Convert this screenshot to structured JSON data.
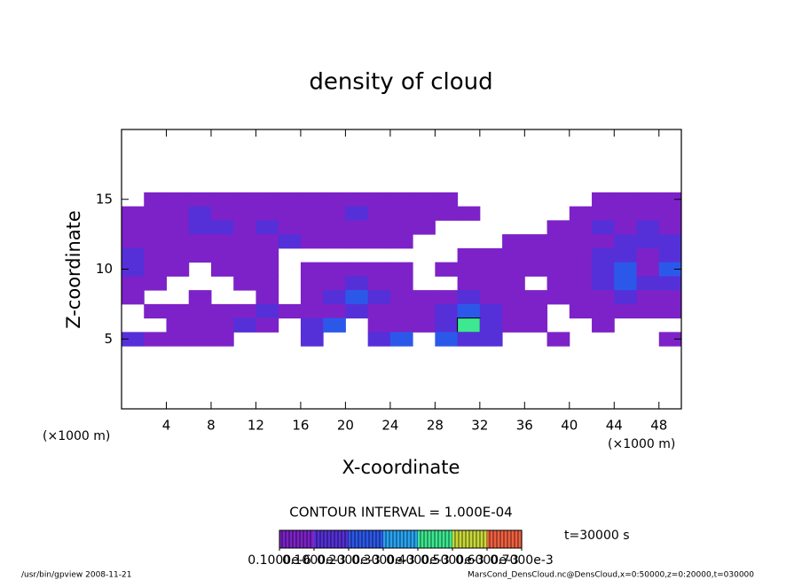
{
  "chart_data": {
    "type": "contour",
    "title": "density of cloud",
    "x_label": "X-coordinate",
    "y_label": "Z-coordinate",
    "x_unit": "(×1000 m)",
    "y_unit": "(×1000 m)",
    "contour_interval": "CONTOUR INTERVAL = 1.000E-04",
    "time": "t=30000 s",
    "footer_left": "/usr/bin/gpview   2008-11-21",
    "footer_right": "MarsCond_DensCloud.nc@DensCloud,x=0:50000,z=0:20000,t=030000",
    "xlim": [
      0,
      50
    ],
    "ylim": [
      0,
      20
    ],
    "xticks": [
      4,
      8,
      12,
      16,
      20,
      24,
      28,
      32,
      36,
      40,
      44,
      48
    ],
    "yticks": [
      5,
      10,
      15
    ],
    "x": [
      1,
      3,
      5,
      7,
      9,
      11,
      13,
      15,
      17,
      19,
      21,
      23,
      25,
      27,
      29,
      31,
      33,
      35,
      37,
      39,
      41,
      43,
      45,
      47,
      49
    ],
    "z": [
      15,
      14,
      13,
      12,
      11,
      10,
      9,
      8,
      7,
      6,
      5
    ],
    "values": [
      [
        null,
        0.0001,
        0.0001,
        0.0001,
        0.0001,
        0.0001,
        0.0001,
        0.0001,
        0.0001,
        0.0001,
        0.0001,
        0.0001,
        0.0001,
        0.0001,
        0.0001,
        null,
        null,
        null,
        null,
        null,
        null,
        0.0001,
        0.0001,
        0.0001,
        0.0001
      ],
      [
        0.0001,
        0.0001,
        0.0001,
        0.0002,
        0.0001,
        0.0001,
        0.0001,
        0.0001,
        0.0001,
        0.0001,
        0.0002,
        0.0001,
        0.0001,
        0.0001,
        0.0001,
        0.0001,
        null,
        null,
        null,
        null,
        0.0001,
        0.0001,
        0.0001,
        0.0001,
        0.0001
      ],
      [
        0.0001,
        0.0001,
        0.0001,
        0.0002,
        0.0002,
        0.0001,
        0.0002,
        0.0001,
        0.0001,
        0.0001,
        0.0001,
        0.0001,
        0.0001,
        0.0001,
        null,
        null,
        null,
        null,
        null,
        0.0001,
        0.0001,
        0.0002,
        0.0001,
        0.0002,
        0.0001
      ],
      [
        0.0001,
        0.0001,
        0.0001,
        0.0001,
        0.0001,
        0.0001,
        0.0001,
        0.0002,
        0.0001,
        0.0001,
        0.0001,
        0.0001,
        0.0001,
        null,
        null,
        null,
        null,
        0.0001,
        0.0001,
        0.0001,
        0.0001,
        0.0001,
        0.0002,
        0.0002,
        0.0002
      ],
      [
        0.0002,
        0.0001,
        0.0001,
        0.0001,
        0.0001,
        0.0001,
        0.0001,
        null,
        null,
        null,
        null,
        null,
        null,
        null,
        null,
        0.0001,
        0.0001,
        0.0001,
        0.0001,
        0.0001,
        0.0001,
        0.0002,
        0.0002,
        0.0001,
        0.0002
      ],
      [
        0.0002,
        0.0001,
        0.0001,
        null,
        0.0001,
        0.0001,
        0.0001,
        null,
        0.0001,
        0.0001,
        0.0001,
        0.0001,
        0.0001,
        null,
        0.0001,
        0.0001,
        0.0001,
        0.0001,
        0.0001,
        0.0001,
        0.0001,
        0.0002,
        0.0003,
        0.0001,
        0.0003
      ],
      [
        0.0001,
        0.0001,
        null,
        null,
        null,
        0.0001,
        0.0001,
        null,
        0.0001,
        0.0001,
        0.0002,
        0.0001,
        0.0001,
        null,
        null,
        0.0001,
        0.0001,
        0.0001,
        null,
        0.0001,
        0.0001,
        0.0002,
        0.0003,
        0.0002,
        0.0002
      ],
      [
        0.0001,
        null,
        null,
        0.0001,
        null,
        null,
        0.0001,
        null,
        0.0001,
        0.0002,
        0.0003,
        0.0002,
        0.0001,
        0.0001,
        0.0001,
        0.0002,
        0.0001,
        0.0001,
        0.0001,
        0.0001,
        0.0001,
        0.0001,
        0.0002,
        0.0001,
        0.0001
      ],
      [
        null,
        0.0001,
        0.0001,
        0.0001,
        0.0001,
        0.0001,
        0.0002,
        0.0001,
        0.0001,
        0.0001,
        0.0002,
        0.0001,
        0.0001,
        0.0001,
        0.0002,
        0.0003,
        0.0002,
        0.0001,
        0.0001,
        null,
        0.0001,
        0.0001,
        0.0001,
        0.0001,
        0.0001
      ],
      [
        null,
        null,
        0.0001,
        0.0001,
        0.0001,
        0.0002,
        0.0001,
        null,
        0.0002,
        0.0003,
        null,
        0.0001,
        0.0001,
        0.0001,
        0.0002,
        0.0005,
        0.0002,
        0.0001,
        0.0001,
        null,
        null,
        0.0001,
        null,
        null,
        null
      ],
      [
        0.0002,
        0.0001,
        0.0001,
        0.0001,
        0.0001,
        null,
        null,
        null,
        0.0002,
        null,
        null,
        0.0002,
        0.0003,
        null,
        0.0003,
        0.0002,
        0.0002,
        null,
        null,
        0.0001,
        null,
        null,
        null,
        null,
        0.0001
      ]
    ],
    "levels": [
      0.0001,
      0.0002,
      0.0003,
      0.0004,
      0.0005,
      0.0006,
      0.0007
    ],
    "level_colors": [
      "#7c22c8",
      "#5530d8",
      "#2c58ea",
      "#28a4f2",
      "#3ce890",
      "#c8d838",
      "#f06040"
    ],
    "clim": [
      1e-07,
      0.0007
    ],
    "cticks": [
      {
        "value": 1e-07,
        "label": "0.1000e-6"
      },
      {
        "value": 0.0001,
        "label": "0.1000e-3"
      },
      {
        "value": 0.0002,
        "label": "0.2000e-3"
      },
      {
        "value": 0.0003,
        "label": "0.3000e-3"
      },
      {
        "value": 0.0004,
        "label": "0.4000e-3"
      },
      {
        "value": 0.0005,
        "label": "0.5000e-3"
      },
      {
        "value": 0.0006,
        "label": "0.6000e-3"
      },
      {
        "value": 0.0007,
        "label": "0.7000e-3"
      }
    ]
  }
}
